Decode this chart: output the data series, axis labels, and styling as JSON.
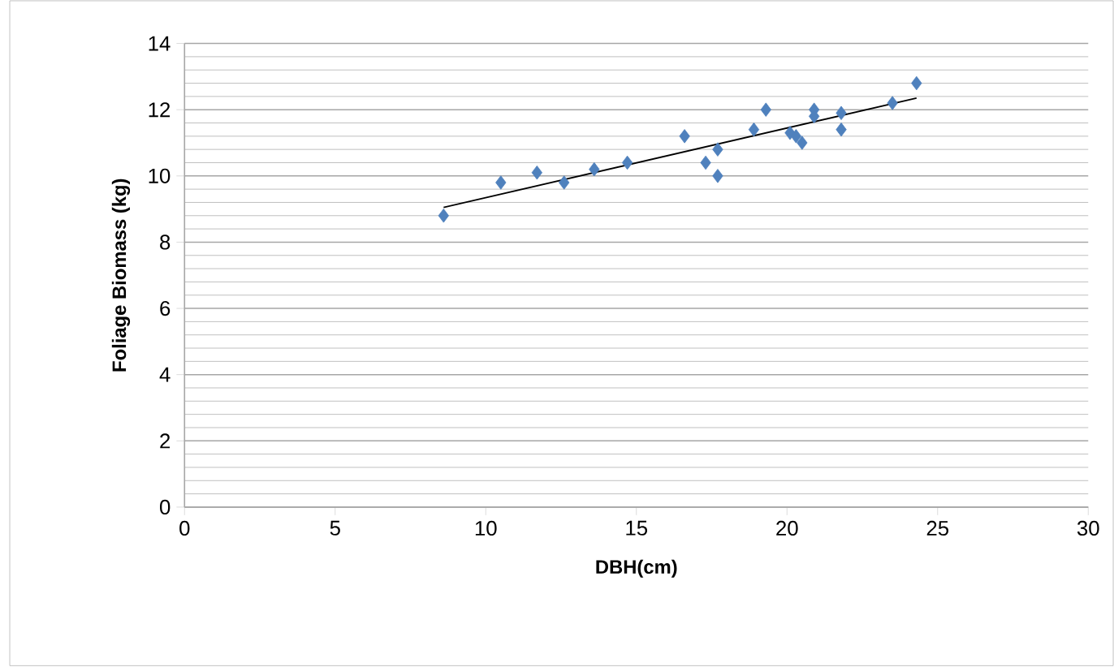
{
  "chart_data": {
    "type": "scatter",
    "xlabel": "DBH(cm)",
    "ylabel": "Foliage Biomass (kg)",
    "xlim": [
      0,
      30
    ],
    "ylim": [
      0,
      14
    ],
    "xticks": [
      0,
      5,
      10,
      15,
      20,
      25,
      30
    ],
    "yticks": [
      0,
      2,
      4,
      6,
      8,
      10,
      12,
      14
    ],
    "grid": "y",
    "series": [
      {
        "marker": "diamond",
        "color": "#4f81bd",
        "x": [
          8.6,
          10.5,
          11.7,
          12.6,
          13.6,
          14.7,
          16.6,
          17.3,
          17.7,
          17.7,
          18.9,
          19.3,
          20.1,
          20.3,
          20.5,
          20.9,
          20.9,
          21.8,
          21.8,
          23.5,
          24.3
        ],
        "values": [
          8.8,
          9.8,
          10.1,
          9.8,
          10.2,
          10.4,
          11.2,
          10.4,
          10.8,
          10.0,
          11.4,
          12.0,
          11.3,
          11.2,
          11.0,
          12.0,
          11.8,
          11.9,
          11.4,
          12.2,
          12.8
        ]
      },
      {
        "type": "line",
        "marker": "none",
        "color": "#000000",
        "x": [
          8.6,
          24.3
        ],
        "values": [
          9.05,
          12.35
        ]
      }
    ]
  }
}
